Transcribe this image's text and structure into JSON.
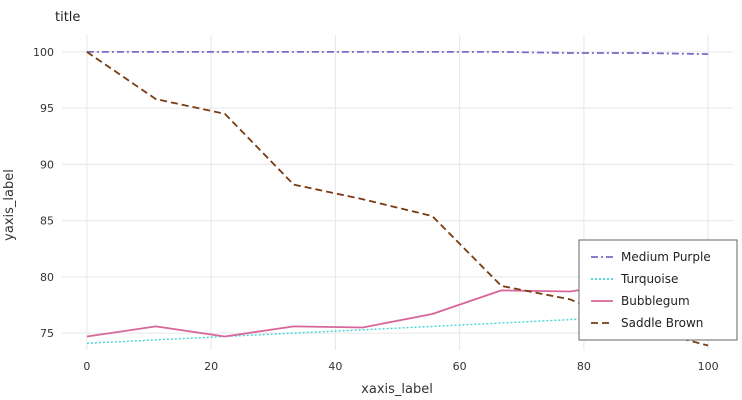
{
  "chart_data": {
    "type": "line",
    "title": "title",
    "xlabel": "xaxis_label",
    "ylabel": "yaxis_label",
    "xlim": [
      -4,
      104
    ],
    "ylim": [
      73.5,
      101.5
    ],
    "xticks": [
      0,
      20,
      40,
      60,
      80,
      100
    ],
    "yticks": [
      75,
      80,
      85,
      90,
      95,
      100
    ],
    "grid": true,
    "legend_position": "right",
    "series": [
      {
        "name": "Medium Purple",
        "color": "#7b68c8",
        "dash": "dashdot",
        "x": [
          0,
          11.1,
          22.2,
          33.3,
          44.4,
          55.6,
          66.7,
          77.8,
          88.9,
          100
        ],
        "y": [
          100.0,
          100.0,
          100.0,
          100.0,
          100.0,
          100.0,
          100.0,
          99.9,
          99.9,
          99.8
        ]
      },
      {
        "name": "Turquoise",
        "color": "#40d6d8",
        "dash": "dotted",
        "x": [
          0,
          11.1,
          22.2,
          33.3,
          44.4,
          55.6,
          66.7,
          77.8,
          88.9,
          100
        ],
        "y": [
          74.1,
          74.4,
          74.7,
          75.0,
          75.3,
          75.6,
          75.9,
          76.2,
          76.5,
          76.8
        ]
      },
      {
        "name": "Bubblegum",
        "color": "#d9669a",
        "dash": "solid",
        "x": [
          0,
          11.1,
          22.2,
          33.3,
          44.4,
          55.6,
          66.7,
          77.8,
          88.9,
          100
        ],
        "y": [
          74.7,
          75.6,
          74.7,
          75.6,
          75.5,
          76.7,
          78.8,
          78.7,
          79.6,
          80.0
        ]
      },
      {
        "name": "Saddle Brown",
        "color": "#7a3b12",
        "dash": "dashed",
        "x": [
          0,
          11.1,
          22.2,
          33.3,
          44.4,
          55.6,
          66.7,
          77.8,
          88.9,
          100
        ],
        "y": [
          100.0,
          95.8,
          94.5,
          88.2,
          86.9,
          85.4,
          79.2,
          78.0,
          75.5,
          73.9
        ]
      }
    ]
  }
}
